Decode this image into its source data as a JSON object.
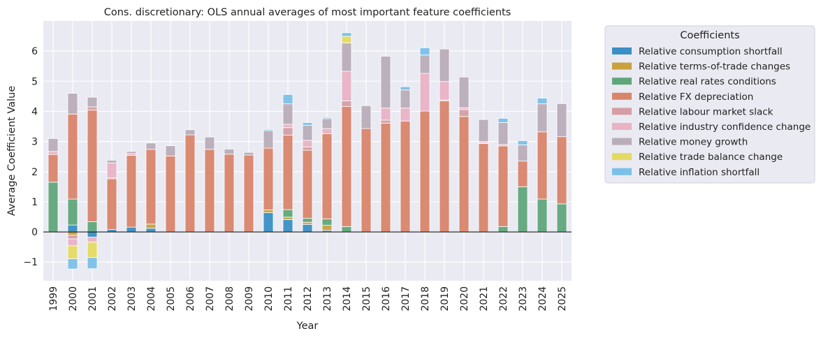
{
  "chart_data": {
    "type": "bar",
    "stacked": true,
    "title": "Cons. discretionary: OLS annual averages of most important feature coefficients",
    "xlabel": "Year",
    "ylabel": "Average Coefficient Value",
    "ylim": [
      -1.62,
      7.0
    ],
    "yticks": [
      -1,
      0,
      1,
      2,
      3,
      4,
      5,
      6
    ],
    "grid": true,
    "legend_title": "Coefficients",
    "legend_position": "outside-right",
    "categories": [
      "1999",
      "2000",
      "2001",
      "2002",
      "2003",
      "2004",
      "2005",
      "2006",
      "2007",
      "2008",
      "2009",
      "2010",
      "2011",
      "2012",
      "2013",
      "2014",
      "2015",
      "2016",
      "2017",
      "2018",
      "2019",
      "2020",
      "2021",
      "2022",
      "2023",
      "2024",
      "2025"
    ],
    "series": [
      {
        "name": "Relative consumption shortfall",
        "color": "#3a8fc4",
        "values": [
          0,
          0.23,
          -0.17,
          0.08,
          0.16,
          0.12,
          0,
          0,
          0,
          0,
          0,
          0.64,
          0.41,
          0.25,
          0.05,
          0,
          0,
          0,
          0,
          0,
          0,
          0,
          0,
          0,
          0,
          0,
          0
        ]
      },
      {
        "name": "Relative terms-of-trade changes",
        "color": "#c9a13f",
        "values": [
          0,
          -0.11,
          0,
          0,
          0,
          0.14,
          0,
          0,
          0,
          0,
          0,
          0.09,
          0.08,
          0.07,
          0.17,
          0,
          0,
          0,
          0,
          0,
          0,
          0,
          0,
          0,
          0,
          0,
          0
        ]
      },
      {
        "name": "Relative real rates conditions",
        "color": "#60a67b",
        "values": [
          1.65,
          0.86,
          0.34,
          0,
          0,
          0,
          0,
          0,
          0,
          0,
          0,
          0,
          0.25,
          0.13,
          0.21,
          0.18,
          0,
          0,
          0,
          0,
          0,
          0,
          0,
          0.18,
          1.5,
          1.09,
          0.93
        ]
      },
      {
        "name": "Relative FX depreciation",
        "color": "#d9856b",
        "values": [
          0.92,
          2.82,
          3.7,
          1.68,
          2.38,
          2.48,
          2.52,
          3.22,
          2.74,
          2.58,
          2.55,
          2.05,
          2.47,
          2.26,
          2.83,
          3.98,
          3.43,
          3.61,
          3.68,
          4.01,
          4.35,
          3.83,
          2.93,
          2.67,
          0.85,
          2.23,
          2.23
        ]
      },
      {
        "name": "Relative labour market slack",
        "color": "#d49ea4",
        "values": [
          0,
          -0.12,
          0.11,
          0.04,
          0,
          0,
          0,
          0,
          0,
          0,
          0,
          0,
          0.25,
          0.11,
          0,
          0.19,
          0,
          0.1,
          0,
          0,
          0.03,
          0.23,
          0.03,
          0,
          0,
          0,
          0
        ]
      },
      {
        "name": "Relative industry confidence change",
        "color": "#e9b2c5",
        "values": [
          0.1,
          -0.23,
          -0.17,
          0.49,
          0.06,
          0,
          0,
          0,
          0,
          0,
          0,
          0,
          0.11,
          0.22,
          0.17,
          0.98,
          0,
          0.4,
          0.43,
          1.25,
          0.61,
          0.06,
          0.04,
          0.05,
          0,
          0,
          0
        ]
      },
      {
        "name": "Relative money growth",
        "color": "#b9adb9",
        "values": [
          0.43,
          0.69,
          0.32,
          0.09,
          0.07,
          0.21,
          0.34,
          0.17,
          0.41,
          0.17,
          0.09,
          0.58,
          0.68,
          0.5,
          0.33,
          0.94,
          0.76,
          1.72,
          0.6,
          0.61,
          1.08,
          1.02,
          0.73,
          0.73,
          0.54,
          0.93,
          1.1
        ]
      },
      {
        "name": "Relative trade balance change",
        "color": "#e4da63",
        "values": [
          0,
          -0.43,
          -0.51,
          0,
          0,
          0,
          0,
          0,
          0,
          0,
          0,
          0,
          0,
          0,
          0,
          0.22,
          0,
          0,
          0,
          0,
          0,
          0,
          0,
          0,
          0,
          0,
          0
        ]
      },
      {
        "name": "Relative inflation shortfall",
        "color": "#7bc0e8",
        "values": [
          0,
          -0.34,
          -0.37,
          0,
          0,
          0,
          0,
          0,
          0,
          0,
          0,
          0.04,
          0.31,
          0.09,
          0.04,
          0.12,
          0,
          0,
          0.11,
          0.24,
          0,
          0,
          0,
          0.14,
          0.14,
          0.19,
          0
        ]
      }
    ]
  }
}
